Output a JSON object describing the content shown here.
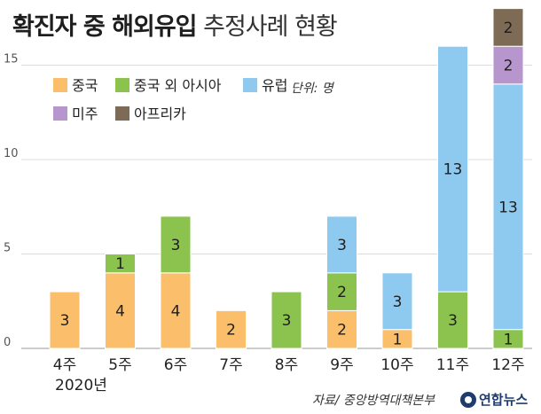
{
  "title": {
    "bold": "확진자 중 해외유입",
    "light": "추정사례 현황"
  },
  "unit_label": "단위: 명",
  "year_label": "2020년",
  "source": "자료/ 중앙방역대책본부",
  "logo_text": "연합뉴스",
  "colors": {
    "china": "#fbbf6b",
    "asia": "#8cc34f",
    "europe": "#8ec9ef",
    "americas": "#b796cd",
    "africa": "#7e6b56",
    "grid": "#dddddd",
    "axis": "#999999"
  },
  "chart_data": {
    "type": "bar",
    "stacked": true,
    "categories": [
      "4주",
      "5주",
      "6주",
      "7주",
      "8주",
      "9주",
      "10주",
      "11주",
      "12주"
    ],
    "series": [
      {
        "name": "중국",
        "color_key": "china",
        "values": [
          3,
          4,
          4,
          2,
          0,
          2,
          1,
          0,
          0
        ]
      },
      {
        "name": "중국 외 아시아",
        "color_key": "asia",
        "values": [
          0,
          1,
          3,
          0,
          3,
          2,
          0,
          3,
          1
        ]
      },
      {
        "name": "유럽",
        "color_key": "europe",
        "values": [
          0,
          0,
          0,
          0,
          0,
          3,
          3,
          13,
          13
        ]
      },
      {
        "name": "미주",
        "color_key": "americas",
        "values": [
          0,
          0,
          0,
          0,
          0,
          0,
          0,
          0,
          2
        ]
      },
      {
        "name": "아프리카",
        "color_key": "africa",
        "values": [
          0,
          0,
          0,
          0,
          0,
          0,
          0,
          0,
          2
        ]
      }
    ],
    "yticks": [
      0,
      5,
      10,
      15
    ],
    "ylim": [
      0,
      18
    ],
    "grid": true,
    "legend_position": "top-left"
  }
}
